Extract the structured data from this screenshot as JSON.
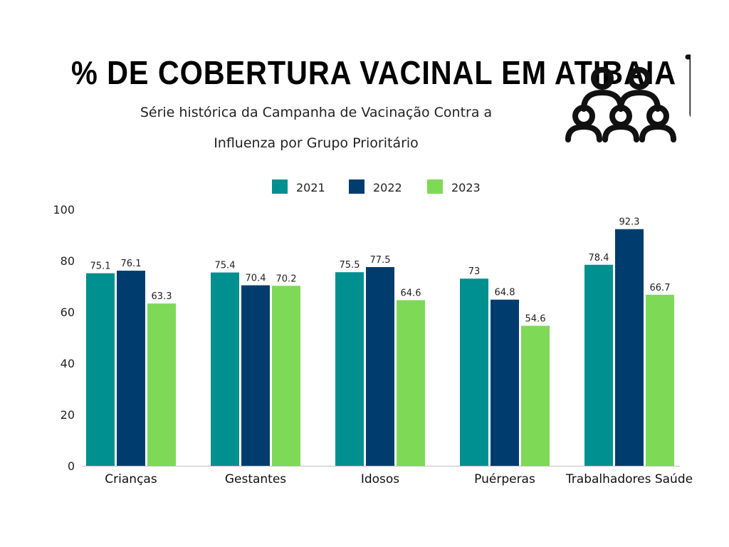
{
  "page": {
    "title": "% DE COBERTURA VACINAL EM ATIBAIA",
    "subtitle_line1": "Série histórica da Campanha de Vacinação Contra a",
    "subtitle_line2": "Influenza por Grupo Prioritário",
    "icon": "people-and-syringe-icon"
  },
  "chart_data": {
    "type": "bar",
    "title": "% DE COBERTURA VACINAL EM ATIBAIA",
    "subtitle": "Série histórica da Campanha de Vacinação Contra a Influenza por Grupo Prioritário",
    "categories": [
      "Crianças",
      "Gestantes",
      "Idosos",
      "Puérperas",
      "Trabalhadores Saúde"
    ],
    "series": [
      {
        "name": "2021",
        "color": "#00908F",
        "values": [
          75.1,
          75.4,
          75.5,
          73,
          78.4
        ],
        "labels": [
          "75.1",
          "75.4",
          "75.5",
          "73",
          "78.4"
        ]
      },
      {
        "name": "2022",
        "color": "#003D6E",
        "values": [
          76.1,
          70.4,
          77.5,
          64.8,
          92.3
        ],
        "labels": [
          "76.1",
          "70.4",
          "77.5",
          "64.8",
          "92.3"
        ]
      },
      {
        "name": "2023",
        "color": "#7ED957",
        "values": [
          63.3,
          70.2,
          64.6,
          54.6,
          66.7
        ],
        "labels": [
          "63.3",
          "70.2",
          "64.6",
          "54.6",
          "66.7"
        ]
      }
    ],
    "ylim": [
      0,
      100
    ],
    "yticks": [
      "0",
      "20",
      "40",
      "60",
      "80",
      "100"
    ],
    "xlabel": "",
    "ylabel": "",
    "grid": false,
    "legend_position": "top-center"
  }
}
